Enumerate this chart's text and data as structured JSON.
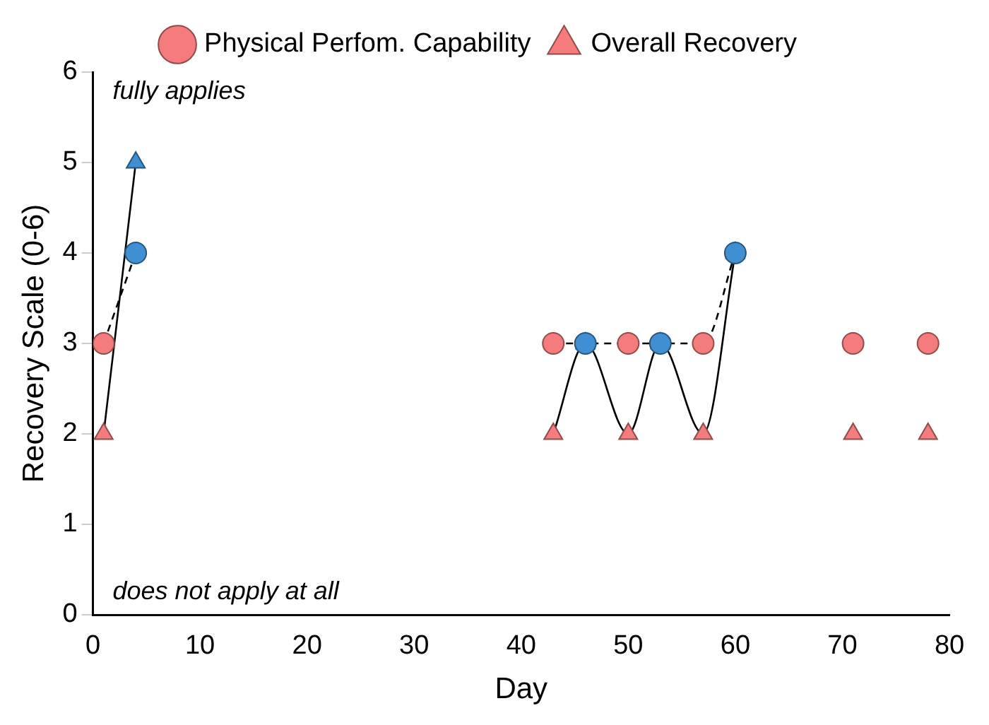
{
  "chart_data": {
    "type": "line",
    "xlabel": "Day",
    "ylabel": "Recovery Scale (0-6)",
    "x": [
      1,
      4,
      20,
      43,
      46,
      50,
      53,
      57,
      60,
      65,
      71,
      75,
      78
    ],
    "series": [
      {
        "name": "Physical Perfom. Capability",
        "color": "#000000",
        "marker": "circle",
        "line_style": "dashed",
        "values": [
          3,
          4,
          null,
          3,
          3,
          3,
          3,
          3,
          4,
          null,
          3,
          null,
          3
        ],
        "colors": [
          "#f47c7c",
          "#3f8fd2",
          null,
          "#f47c7c",
          "#3f8fd2",
          "#f47c7c",
          "#3f8fd2",
          "#f47c7c",
          "#3f8fd2",
          null,
          "#f47c7c",
          null,
          "#f47c7c"
        ]
      },
      {
        "name": "Overall Recovery",
        "color": "#000000",
        "marker": "triangle",
        "line_style": "solid",
        "values": [
          2,
          5,
          null,
          2,
          3,
          2,
          3,
          2,
          4,
          null,
          2,
          null,
          2
        ],
        "colors": [
          "#f47c7c",
          "#3f8fd2",
          null,
          "#f47c7c",
          "#3f8fd2",
          "#f47c7c",
          "#3f8fd2",
          "#f47c7c",
          "#3f8fd2",
          null,
          "#f47c7c",
          null,
          "#f47c7c"
        ]
      }
    ],
    "xlim": [
      0,
      80
    ],
    "xticks": [
      0,
      10,
      20,
      30,
      40,
      50,
      60,
      70,
      80
    ],
    "ylim": [
      0,
      6
    ],
    "yticks": [
      0,
      1,
      2,
      3,
      4,
      5,
      6
    ],
    "grid": false,
    "legend": "top",
    "annotations": [
      "fully applies",
      "does not apply at all"
    ]
  }
}
